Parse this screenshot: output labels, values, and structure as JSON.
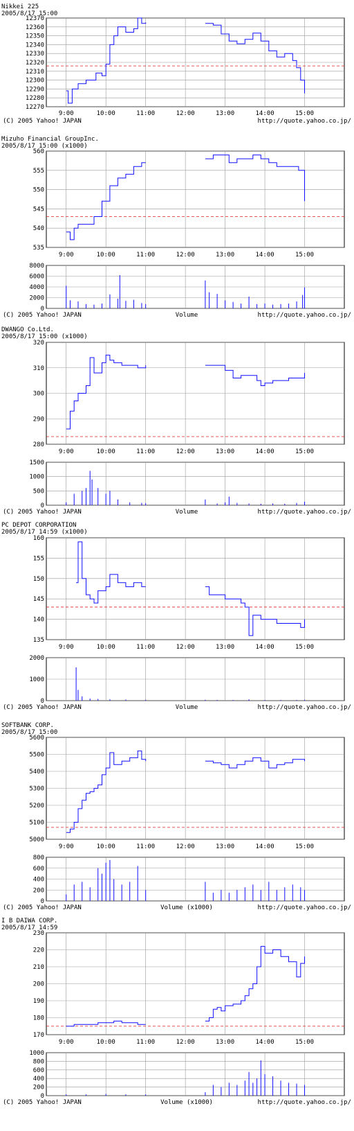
{
  "footer": {
    "copyright": "(C) 2005 Yahoo! JAPAN",
    "url": "http://quote.yahoo.co.jp/"
  },
  "colors": {
    "price_line": "#1010ff",
    "reference_line": "#e02020",
    "grid": "#999999"
  },
  "chart_data": [
    {
      "type": "line",
      "title": "Nikkei 225",
      "subtitle": "2005/8/17 15:00",
      "x_ticks": [
        "9:00",
        "10:00",
        "11:00",
        "12:00",
        "13:00",
        "14:00",
        "15:00"
      ],
      "y_ticks": [
        12270,
        12280,
        12290,
        12300,
        12310,
        12320,
        12330,
        12340,
        12350,
        12360,
        12370
      ],
      "ylim": [
        12270,
        12370
      ],
      "reference_line": 12316,
      "grid": true,
      "series": [
        {
          "x": [
            9.0,
            9.05,
            9.15,
            9.3,
            9.5,
            9.75,
            9.9,
            10.0,
            10.1,
            10.2,
            10.3,
            10.5,
            10.7,
            10.8,
            10.9,
            11.0
          ],
          "y": [
            12288,
            12274,
            12290,
            12296,
            12300,
            12308,
            12305,
            12318,
            12340,
            12350,
            12360,
            12354,
            12358,
            12370,
            12364,
            12365
          ]
        },
        {
          "x": [
            12.5,
            12.7,
            12.9,
            13.1,
            13.3,
            13.5,
            13.7,
            13.9,
            14.1,
            14.3,
            14.5,
            14.7,
            14.8,
            14.9,
            15.0
          ],
          "y": [
            12364,
            12362,
            12352,
            12344,
            12341,
            12346,
            12353,
            12344,
            12333,
            12326,
            12330,
            12322,
            12314,
            12300,
            12285
          ]
        }
      ],
      "volume": null,
      "footer_label": ""
    },
    {
      "type": "line",
      "title": "Mizuho Financial GroupInc.",
      "subtitle": "2005/8/17 15:00 (x1000)",
      "x_ticks": [
        "9:00",
        "10:00",
        "11:00",
        "12:00",
        "13:00",
        "14:00",
        "15:00"
      ],
      "y_ticks": [
        535,
        540,
        545,
        550,
        555,
        560
      ],
      "ylim": [
        535,
        560
      ],
      "reference_line": 543,
      "grid": true,
      "series": [
        {
          "x": [
            9.0,
            9.1,
            9.2,
            9.3,
            9.5,
            9.7,
            9.9,
            10.1,
            10.3,
            10.5,
            10.7,
            10.9,
            11.0
          ],
          "y": [
            539,
            537,
            540,
            541,
            541,
            543,
            547,
            551,
            553,
            554,
            556,
            557,
            557
          ]
        },
        {
          "x": [
            12.5,
            12.7,
            12.9,
            13.1,
            13.3,
            13.5,
            13.7,
            13.9,
            14.1,
            14.3,
            14.5,
            14.7,
            14.85,
            15.0
          ],
          "y": [
            558,
            559,
            559,
            557,
            558,
            558,
            559,
            558,
            557,
            556,
            556,
            556,
            555,
            547
          ]
        }
      ],
      "volume": {
        "y_ticks": [
          0,
          2000,
          4000,
          6000,
          8000
        ],
        "ylim": [
          0,
          8000
        ],
        "series": [
          {
            "x": [
              9.0,
              9.1,
              9.3,
              9.5,
              9.7,
              9.9,
              10.1,
              10.3,
              10.35,
              10.5,
              10.7,
              10.9,
              11.0
            ],
            "y": [
              4200,
              1500,
              1300,
              800,
              700,
              900,
              2600,
              1800,
              6200,
              1400,
              1600,
              1000,
              800
            ]
          },
          {
            "x": [
              12.5,
              12.6,
              12.8,
              13.0,
              13.2,
              13.4,
              13.6,
              13.8,
              14.0,
              14.2,
              14.4,
              14.6,
              14.8,
              14.95,
              15.0
            ],
            "y": [
              5200,
              3000,
              2700,
              1500,
              1200,
              900,
              2200,
              800,
              900,
              700,
              800,
              900,
              1300,
              2500,
              3900
            ]
          }
        ]
      },
      "footer_label": "Volume"
    },
    {
      "type": "line",
      "title": "DWANGO Co.Ltd.",
      "subtitle": "2005/8/17 15:00 (x1000)",
      "x_ticks": [
        "9:00",
        "10:00",
        "11:00",
        "12:00",
        "13:00",
        "14:00",
        "15:00"
      ],
      "y_ticks": [
        280,
        290,
        300,
        310,
        320
      ],
      "ylim": [
        280,
        320
      ],
      "reference_line": 283,
      "grid": true,
      "series": [
        {
          "x": [
            9.0,
            9.1,
            9.2,
            9.3,
            9.4,
            9.5,
            9.6,
            9.7,
            9.8,
            9.9,
            10.0,
            10.1,
            10.2,
            10.4,
            10.6,
            10.8,
            11.0
          ],
          "y": [
            286,
            293,
            297,
            300,
            300,
            303,
            314,
            308,
            308,
            312,
            315,
            313,
            312,
            311,
            311,
            310,
            311
          ]
        },
        {
          "x": [
            12.5,
            12.8,
            13.0,
            13.2,
            13.4,
            13.6,
            13.8,
            13.9,
            14.0,
            14.2,
            14.4,
            14.6,
            14.8,
            15.0
          ],
          "y": [
            311,
            311,
            309,
            306,
            307,
            307,
            305,
            303,
            304,
            305,
            305,
            306,
            306,
            308
          ]
        }
      ],
      "volume": {
        "y_ticks": [
          0,
          500,
          1000,
          1500
        ],
        "ylim": [
          0,
          1500
        ],
        "series": [
          {
            "x": [
              9.0,
              9.2,
              9.4,
              9.5,
              9.6,
              9.65,
              9.8,
              10.0,
              10.1,
              10.3,
              10.6,
              10.9,
              11.0
            ],
            "y": [
              100,
              400,
              500,
              600,
              1200,
              900,
              600,
              400,
              500,
              200,
              100,
              80,
              70
            ]
          },
          {
            "x": [
              12.5,
              12.8,
              13.0,
              13.1,
              13.3,
              13.6,
              13.9,
              14.2,
              14.5,
              14.8,
              15.0
            ],
            "y": [
              200,
              60,
              100,
              300,
              80,
              60,
              50,
              60,
              50,
              80,
              120
            ]
          }
        ]
      },
      "footer_label": "Volume"
    },
    {
      "type": "line",
      "title": "PC DEPOT CORPORATION",
      "subtitle": "2005/8/17 14:59 (x1000)",
      "x_ticks": [
        "9:00",
        "10:00",
        "11:00",
        "12:00",
        "13:00",
        "14:00",
        "15:00"
      ],
      "y_ticks": [
        135,
        140,
        145,
        150,
        155,
        160
      ],
      "ylim": [
        135,
        160
      ],
      "reference_line": 143,
      "grid": true,
      "series": [
        {
          "x": [
            9.25,
            9.3,
            9.4,
            9.5,
            9.6,
            9.7,
            9.8,
            10.0,
            10.1,
            10.3,
            10.5,
            10.7,
            10.9,
            11.0
          ],
          "y": [
            149,
            159,
            150,
            146,
            145,
            144,
            147,
            148,
            151,
            149,
            148,
            149,
            148,
            148
          ]
        },
        {
          "x": [
            12.5,
            12.6,
            12.8,
            13.0,
            13.2,
            13.4,
            13.5,
            13.6,
            13.7,
            13.9,
            14.1,
            14.3,
            14.5,
            14.7,
            14.9,
            15.0
          ],
          "y": [
            148,
            146,
            146,
            145,
            145,
            144,
            143,
            136,
            141,
            140,
            140,
            139,
            139,
            139,
            138,
            140
          ]
        }
      ],
      "volume": {
        "y_ticks": [
          0,
          1000,
          2000
        ],
        "ylim": [
          0,
          2000
        ],
        "series": [
          {
            "x": [
              9.25,
              9.3,
              9.4,
              9.6,
              9.8,
              10.1,
              10.5,
              11.0
            ],
            "y": [
              1550,
              500,
              200,
              100,
              80,
              60,
              50,
              40
            ]
          },
          {
            "x": [
              12.5,
              12.8,
              13.2,
              13.6,
              14.0,
              14.4,
              14.8,
              15.0
            ],
            "y": [
              40,
              30,
              30,
              60,
              30,
              30,
              30,
              40
            ]
          }
        ]
      },
      "footer_label": "Volume"
    },
    {
      "type": "line",
      "title": "SOFTBANK CORP.",
      "subtitle": "2005/8/17 15:00",
      "x_ticks": [
        "9:00",
        "10:00",
        "11:00",
        "12:00",
        "13:00",
        "14:00",
        "15:00"
      ],
      "y_ticks": [
        5000,
        5100,
        5200,
        5300,
        5400,
        5500,
        5600
      ],
      "ylim": [
        5000,
        5600
      ],
      "reference_line": 5070,
      "grid": true,
      "series": [
        {
          "x": [
            9.0,
            9.1,
            9.2,
            9.3,
            9.4,
            9.5,
            9.6,
            9.7,
            9.8,
            9.9,
            10.0,
            10.1,
            10.2,
            10.4,
            10.6,
            10.8,
            10.9,
            11.0
          ],
          "y": [
            5040,
            5060,
            5100,
            5180,
            5230,
            5270,
            5280,
            5300,
            5320,
            5380,
            5420,
            5510,
            5440,
            5460,
            5480,
            5520,
            5470,
            5460
          ]
        },
        {
          "x": [
            12.5,
            12.7,
            12.9,
            13.1,
            13.3,
            13.5,
            13.7,
            13.9,
            14.1,
            14.3,
            14.5,
            14.7,
            14.9,
            15.0
          ],
          "y": [
            5460,
            5450,
            5440,
            5420,
            5440,
            5460,
            5480,
            5460,
            5420,
            5440,
            5450,
            5470,
            5470,
            5460
          ]
        }
      ],
      "volume": {
        "y_ticks": [
          0,
          200,
          400,
          600,
          800
        ],
        "ylim": [
          0,
          800
        ],
        "series": [
          {
            "x": [
              9.0,
              9.2,
              9.4,
              9.6,
              9.8,
              9.9,
              10.0,
              10.1,
              10.2,
              10.4,
              10.6,
              10.8,
              11.0
            ],
            "y": [
              120,
              300,
              350,
              250,
              600,
              500,
              700,
              750,
              400,
              300,
              350,
              640,
              200
            ]
          },
          {
            "x": [
              12.5,
              12.7,
              12.9,
              13.1,
              13.3,
              13.5,
              13.7,
              13.9,
              14.1,
              14.3,
              14.5,
              14.7,
              14.9,
              15.0
            ],
            "y": [
              350,
              150,
              200,
              150,
              200,
              250,
              300,
              200,
              350,
              200,
              250,
              300,
              250,
              200
            ]
          }
        ]
      },
      "footer_label": "Volume (x1000)"
    },
    {
      "type": "line",
      "title": "I B DAIWA CORP.",
      "subtitle": "2005/8/17 14:59",
      "x_ticks": [
        "9:00",
        "10:00",
        "11:00",
        "12:00",
        "13:00",
        "14:00",
        "15:00"
      ],
      "y_ticks": [
        170,
        180,
        190,
        200,
        210,
        220,
        230
      ],
      "ylim": [
        170,
        230
      ],
      "reference_line": 175,
      "grid": true,
      "series": [
        {
          "x": [
            9.0,
            9.2,
            9.4,
            9.6,
            9.8,
            10.0,
            10.2,
            10.4,
            10.6,
            10.8,
            11.0
          ],
          "y": [
            175,
            176,
            176,
            176,
            177,
            177,
            178,
            177,
            177,
            176,
            176
          ]
        },
        {
          "x": [
            12.5,
            12.6,
            12.7,
            12.8,
            12.9,
            13.0,
            13.2,
            13.4,
            13.5,
            13.6,
            13.7,
            13.8,
            13.9,
            14.0,
            14.2,
            14.4,
            14.6,
            14.8,
            14.9,
            15.0
          ],
          "y": [
            178,
            180,
            185,
            186,
            184,
            187,
            188,
            190,
            193,
            197,
            200,
            210,
            222,
            218,
            220,
            216,
            213,
            204,
            212,
            216
          ]
        }
      ],
      "volume": {
        "y_ticks": [
          0,
          200,
          400,
          600,
          800,
          1000
        ],
        "ylim": [
          0,
          1000
        ],
        "series": [
          {
            "x": [
              9.0,
              9.5,
              10.0,
              10.5,
              11.0
            ],
            "y": [
              30,
              30,
              40,
              30,
              30
            ]
          },
          {
            "x": [
              12.5,
              12.7,
              12.9,
              13.1,
              13.3,
              13.5,
              13.6,
              13.7,
              13.8,
              13.9,
              14.0,
              14.2,
              14.4,
              14.6,
              14.8,
              15.0
            ],
            "y": [
              80,
              250,
              200,
              300,
              250,
              350,
              550,
              300,
              400,
              820,
              500,
              450,
              350,
              300,
              280,
              250
            ]
          }
        ]
      },
      "footer_label": "Volume (x1000)"
    }
  ]
}
